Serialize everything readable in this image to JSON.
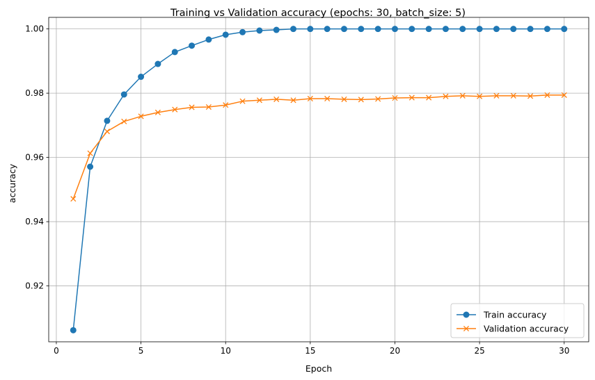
{
  "chart_data": {
    "type": "line",
    "title": "Training vs Validation accuracy (epochs: 30, batch_size: 5)",
    "xlabel": "Epoch",
    "ylabel": "accuracy",
    "xlim": [
      -0.45,
      31.45
    ],
    "ylim": [
      0.9026,
      1.0036
    ],
    "x": [
      1,
      2,
      3,
      4,
      5,
      6,
      7,
      8,
      9,
      10,
      11,
      12,
      13,
      14,
      15,
      16,
      17,
      18,
      19,
      20,
      21,
      22,
      23,
      24,
      25,
      26,
      27,
      28,
      29,
      30
    ],
    "xticks": [
      0,
      5,
      10,
      15,
      20,
      25,
      30
    ],
    "yticks": [
      0.92,
      0.94,
      0.96,
      0.98,
      1.0
    ],
    "xtick_labels": [
      "0",
      "5",
      "10",
      "15",
      "20",
      "25",
      "30"
    ],
    "ytick_labels": [
      "0.92",
      "0.94",
      "0.96",
      "0.98",
      "1.00"
    ],
    "grid": true,
    "legend_position": "bottom-right",
    "series": [
      {
        "name": "Train accuracy",
        "color": "#1f77b4",
        "marker": "circle",
        "values": [
          0.9062,
          0.9571,
          0.9714,
          0.9796,
          0.9851,
          0.9891,
          0.9928,
          0.9948,
          0.9967,
          0.9982,
          0.999,
          0.9995,
          0.9997,
          1.0,
          1.0,
          1.0,
          1.0,
          1.0,
          1.0,
          1.0,
          1.0,
          1.0,
          1.0,
          1.0,
          1.0,
          1.0,
          1.0,
          1.0,
          1.0,
          1.0
        ]
      },
      {
        "name": "Validation accuracy",
        "color": "#ff7f0e",
        "marker": "x",
        "values": [
          0.9471,
          0.9613,
          0.9681,
          0.9712,
          0.9728,
          0.974,
          0.9749,
          0.9756,
          0.9757,
          0.9763,
          0.9775,
          0.9778,
          0.9781,
          0.9778,
          0.9783,
          0.9783,
          0.9781,
          0.978,
          0.9782,
          0.9785,
          0.9786,
          0.9786,
          0.979,
          0.9792,
          0.979,
          0.9792,
          0.9792,
          0.9791,
          0.9794,
          0.9794
        ]
      }
    ]
  }
}
